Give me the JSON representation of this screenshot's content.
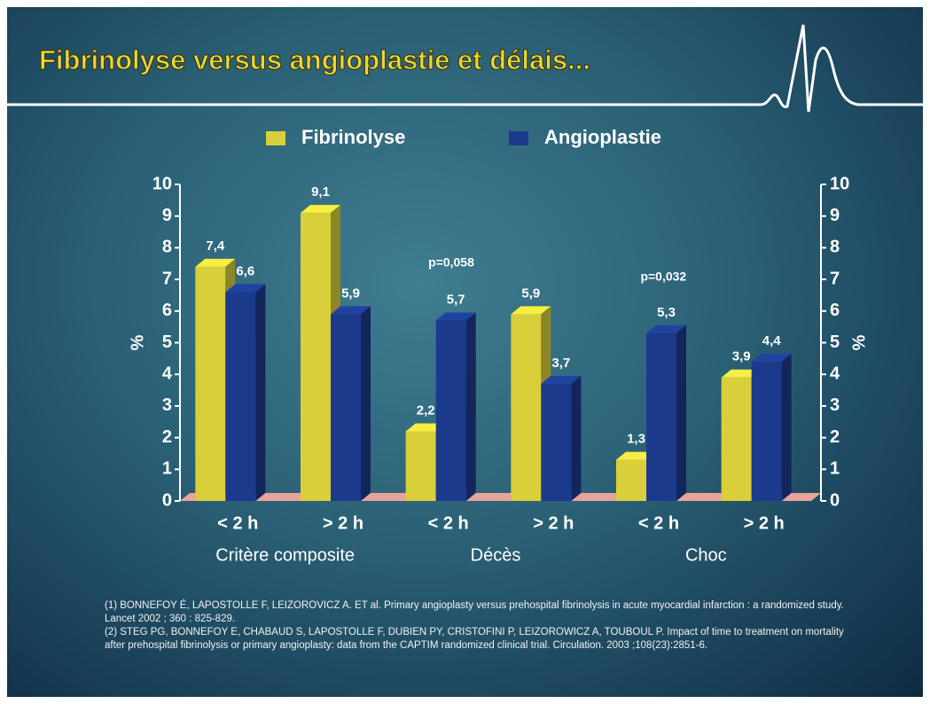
{
  "chart_data": {
    "type": "bar3d",
    "title": "Fibrinolyse versus angioplastie et délais...",
    "categories": [
      "< 2 h",
      "> 2 h",
      "< 2 h",
      "> 2 h",
      "< 2 h",
      "> 2 h"
    ],
    "groups": [
      "Critère composite",
      "Décès",
      "Choc"
    ],
    "series": [
      {
        "name": "Fibrinolyse",
        "color": "#d8cf3a",
        "values": [
          7.4,
          9.1,
          2.2,
          5.9,
          1.3,
          3.9
        ],
        "value_labels": [
          "7,4",
          "9,1",
          "2,2",
          "5,9",
          "1,3",
          "3,9"
        ]
      },
      {
        "name": "Angioplastie",
        "color": "#1c3a8c",
        "values": [
          6.6,
          5.9,
          5.7,
          3.7,
          5.3,
          4.4
        ],
        "value_labels": [
          "6,6",
          "5,9",
          "5,7",
          "3,7",
          "5,3",
          "4,4"
        ]
      }
    ],
    "annotations": [
      "p=0,058",
      "p=0,032"
    ],
    "ylabel": "%",
    "y2label": "%",
    "ylim": [
      0,
      10
    ],
    "yticks": [
      0,
      1,
      2,
      3,
      4,
      5,
      6,
      7,
      8,
      9,
      10
    ],
    "y2lim": [
      0,
      10
    ],
    "y2ticks": [
      0,
      1,
      2,
      3,
      4,
      5,
      6,
      7,
      8,
      9,
      10
    ],
    "legend": "top"
  },
  "references": [
    "(1) BONNEFOY É, LAPOSTOLLE F, LEIZOROVICZ A. ET al. Primary angioplasty versus prehospital fibrinolysis in acute myocardial infarction : a randomized study. Lancet 2002 ; 360 : 825-829.",
    "(2) STEG PG, BONNEFOY E, CHABAUD S, LAPOSTOLLE F, DUBIEN PY, CRISTOFINI P, LEIZOROWICZ A, TOUBOUL P. Impact of time to treatment on mortality after prehospital fibrinolysis or primary angioplasty: data from the CAPTIM randomized clinical trial. Circulation. 2003 ;108(23):2851-6."
  ]
}
